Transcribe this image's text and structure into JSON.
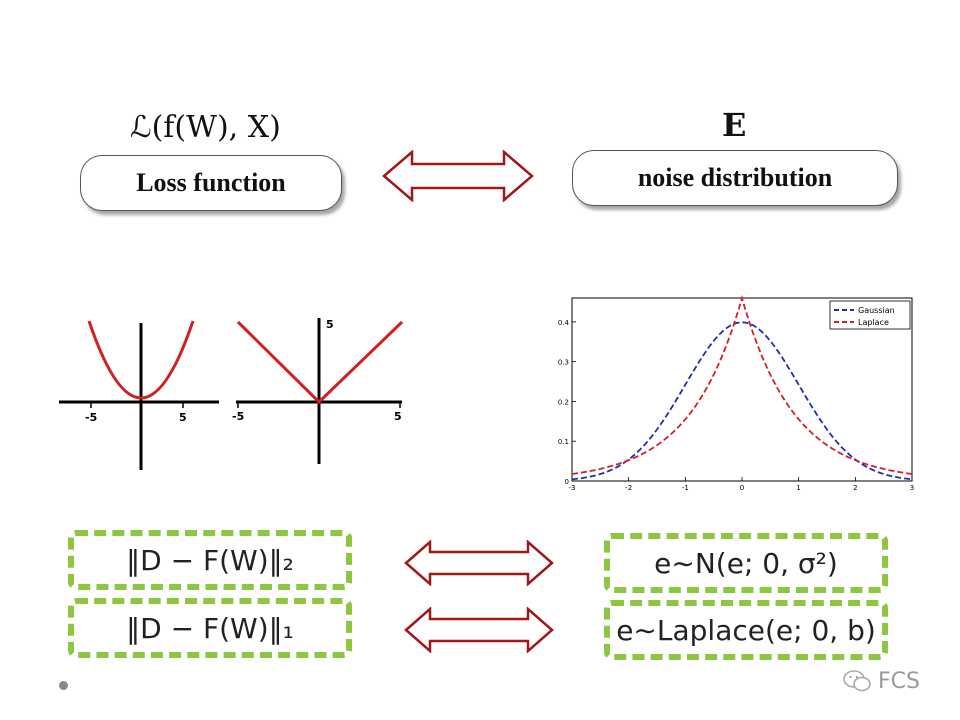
{
  "top": {
    "loss_formula": "ℒ(f(W), X)",
    "noise_symbol": "E",
    "loss_label": "Loss function",
    "noise_label": "noise distribution"
  },
  "left_plots": {
    "quadratic_ticks": [
      "-5",
      "5"
    ],
    "abs_ticks": [
      "-5",
      "5",
      "5"
    ]
  },
  "chart_data": {
    "type": "line",
    "x": [
      -3,
      -2.5,
      -2,
      -1.5,
      -1,
      -0.5,
      0,
      0.5,
      1,
      1.5,
      2,
      2.5,
      3
    ],
    "series": [
      {
        "name": "Gaussian",
        "values": [
          0.004,
          0.018,
          0.054,
          0.13,
          0.242,
          0.352,
          0.399,
          0.352,
          0.242,
          0.13,
          0.054,
          0.018,
          0.004
        ],
        "color": "#1f2fb0"
      },
      {
        "name": "Laplace",
        "values": [
          0.036,
          0.053,
          0.078,
          0.115,
          0.169,
          0.249,
          0.46,
          0.249,
          0.169,
          0.115,
          0.078,
          0.053,
          0.036
        ],
        "color": "#d42020"
      }
    ],
    "xticks": [
      "-3",
      "-2",
      "-1",
      "0",
      "1",
      "2",
      "3"
    ],
    "yticks": [
      "0",
      "0.1",
      "0.2",
      "0.3",
      "0.4"
    ],
    "xlim": [
      -3,
      3
    ],
    "ylim": [
      0,
      0.46
    ],
    "legend": "top-right"
  },
  "bottom": {
    "l2_formula": "‖D − F(W)‖₂",
    "l1_formula": "‖D − F(W)‖₁",
    "gauss_formula": "e∼N(e; 0, σ²)",
    "laplace_formula": "e∼Laplace(e; 0, b)"
  },
  "watermark": "FCS"
}
